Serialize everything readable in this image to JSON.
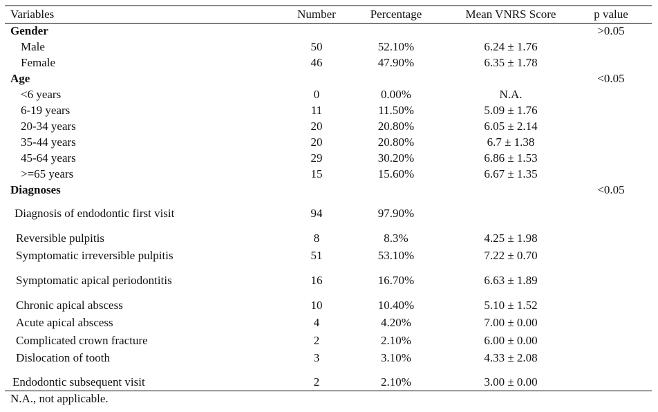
{
  "table": {
    "headers": {
      "variables": "Variables",
      "number": "Number",
      "percentage": "Percentage",
      "mean": "Mean VNRS Score",
      "p": "p value"
    },
    "gender": {
      "label": "Gender",
      "p": ">0.05",
      "rows": [
        {
          "label": "Male",
          "number": "50",
          "percentage": "52.10%",
          "mean": "6.24 ± 1.76"
        },
        {
          "label": "Female",
          "number": "46",
          "percentage": "47.90%",
          "mean": "6.35 ± 1.78"
        }
      ]
    },
    "age": {
      "label": "Age",
      "p": "<0.05",
      "rows": [
        {
          "label": "<6 years",
          "number": "0",
          "percentage": "0.00%",
          "mean": "N.A."
        },
        {
          "label": "6-19 years",
          "number": "11",
          "percentage": "11.50%",
          "mean": "5.09 ± 1.76"
        },
        {
          "label": "20-34 years",
          "number": "20",
          "percentage": "20.80%",
          "mean": "6.05 ± 2.14"
        },
        {
          "label": "35-44 years",
          "number": "20",
          "percentage": "20.80%",
          "mean": "6.7 ± 1.38"
        },
        {
          "label": "45-64 years",
          "number": "29",
          "percentage": "30.20%",
          "mean": "6.86 ± 1.53"
        },
        {
          "label": ">=65 years",
          "number": "15",
          "percentage": "15.60%",
          "mean": "6.67 ± 1.35"
        }
      ]
    },
    "diagnoses": {
      "label": "Diagnoses",
      "p": "<0.05",
      "first_visit": {
        "label": "Diagnosis of endodontic first visit",
        "number": "94",
        "percentage": "97.90%",
        "mean": ""
      },
      "rows": [
        {
          "label": "Reversible pulpitis",
          "number": "8",
          "percentage": "8.3%",
          "mean": "4.25 ± 1.98"
        },
        {
          "label": "Symptomatic irreversible pulpitis",
          "number": "51",
          "percentage": "53.10%",
          "mean": "7.22 ± 0.70"
        },
        {
          "label": "Symptomatic apical periodontitis",
          "number": "16",
          "percentage": "16.70%",
          "mean": "6.63 ± 1.89"
        },
        {
          "label": "Chronic apical abscess",
          "number": "10",
          "percentage": "10.40%",
          "mean": "5.10 ± 1.52"
        },
        {
          "label": "Acute apical abscess",
          "number": "4",
          "percentage": "4.20%",
          "mean": "7.00 ± 0.00"
        },
        {
          "label": "Complicated crown fracture",
          "number": "2",
          "percentage": "2.10%",
          "mean": "6.00 ± 0.00"
        },
        {
          "label": "Dislocation of tooth",
          "number": "3",
          "percentage": "3.10%",
          "mean": "4.33 ± 2.08"
        }
      ],
      "subsequent_visit": {
        "label": "Endodontic subsequent visit",
        "number": "2",
        "percentage": "2.10%",
        "mean": "3.00 ± 0.00"
      }
    },
    "footnote": "N.A., not applicable."
  }
}
